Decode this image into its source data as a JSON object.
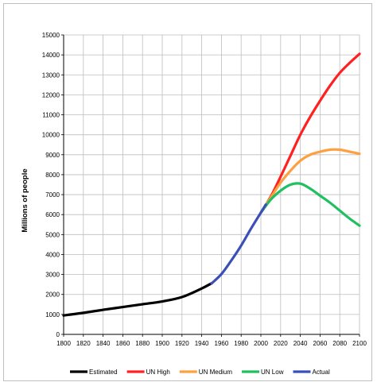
{
  "chart_data": {
    "type": "line",
    "title": "",
    "xlabel": "",
    "ylabel": "Millions of people",
    "xlim": [
      1800,
      2100
    ],
    "ylim": [
      0,
      15000
    ],
    "x_ticks": [
      1800,
      1820,
      1840,
      1860,
      1880,
      1900,
      1920,
      1940,
      1960,
      1980,
      2000,
      2020,
      2040,
      2060,
      2080,
      2100
    ],
    "y_ticks": [
      0,
      1000,
      2000,
      3000,
      4000,
      5000,
      6000,
      7000,
      8000,
      9000,
      10000,
      11000,
      12000,
      13000,
      14000,
      15000
    ],
    "grid": true,
    "legend_position": "bottom",
    "series": [
      {
        "name": "Estimated",
        "color": "#000000",
        "points": [
          [
            1800,
            950
          ],
          [
            1820,
            1080
          ],
          [
            1840,
            1230
          ],
          [
            1860,
            1370
          ],
          [
            1880,
            1510
          ],
          [
            1900,
            1650
          ],
          [
            1920,
            1870
          ],
          [
            1940,
            2300
          ],
          [
            1950,
            2560
          ]
        ]
      },
      {
        "name": "UN High",
        "color": "#ff2020",
        "points": [
          [
            2000,
            6100
          ],
          [
            2010,
            6900
          ],
          [
            2020,
            7900
          ],
          [
            2030,
            8950
          ],
          [
            2040,
            10000
          ],
          [
            2050,
            10900
          ],
          [
            2060,
            11700
          ],
          [
            2070,
            12450
          ],
          [
            2080,
            13100
          ],
          [
            2090,
            13600
          ],
          [
            2100,
            14050
          ]
        ]
      },
      {
        "name": "UN Medium",
        "color": "#ffa040",
        "points": [
          [
            2000,
            6100
          ],
          [
            2010,
            6850
          ],
          [
            2020,
            7600
          ],
          [
            2030,
            8200
          ],
          [
            2040,
            8700
          ],
          [
            2050,
            9000
          ],
          [
            2060,
            9150
          ],
          [
            2070,
            9250
          ],
          [
            2080,
            9250
          ],
          [
            2090,
            9150
          ],
          [
            2100,
            9050
          ]
        ]
      },
      {
        "name": "UN Low",
        "color": "#20c060",
        "points": [
          [
            2000,
            6100
          ],
          [
            2010,
            6750
          ],
          [
            2020,
            7200
          ],
          [
            2030,
            7500
          ],
          [
            2040,
            7550
          ],
          [
            2050,
            7300
          ],
          [
            2060,
            6950
          ],
          [
            2070,
            6600
          ],
          [
            2080,
            6200
          ],
          [
            2090,
            5800
          ],
          [
            2100,
            5450
          ]
        ]
      },
      {
        "name": "Actual",
        "color": "#3a4fb8",
        "points": [
          [
            1950,
            2550
          ],
          [
            1960,
            3020
          ],
          [
            1970,
            3700
          ],
          [
            1980,
            4450
          ],
          [
            1990,
            5300
          ],
          [
            2000,
            6100
          ],
          [
            2005,
            6500
          ]
        ]
      }
    ]
  }
}
